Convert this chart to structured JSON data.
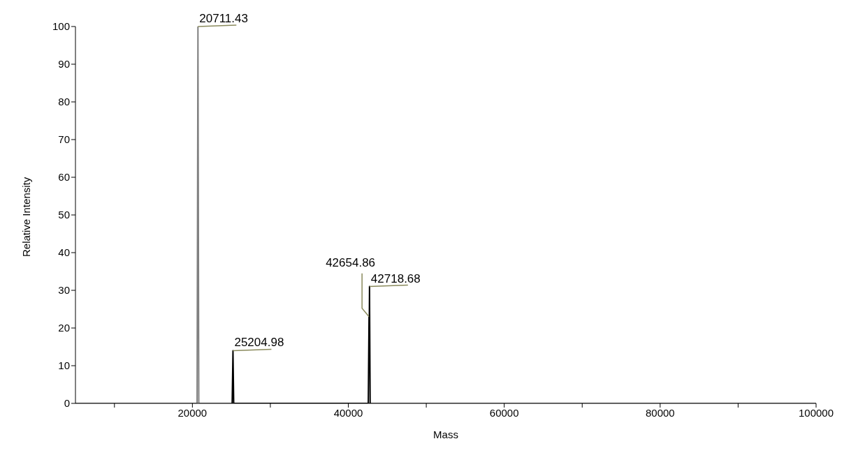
{
  "chart_data": {
    "type": "line",
    "xlabel": "Mass",
    "ylabel": "Relative Intensity",
    "xlim": [
      5000,
      100000
    ],
    "ylim": [
      0,
      100
    ],
    "xticks": [
      {
        "value": 10000,
        "label": null
      },
      20000,
      {
        "value": 30000,
        "label": null
      },
      40000,
      {
        "value": 50000,
        "label": null
      },
      60000,
      {
        "value": 70000,
        "label": null
      },
      80000,
      {
        "value": 90000,
        "label": null
      },
      100000
    ],
    "yticks": [
      0,
      10,
      20,
      30,
      40,
      50,
      60,
      70,
      80,
      90,
      100
    ],
    "marker": "none",
    "line_style": "solid",
    "series": [
      {
        "color": "#808080",
        "x": [
          5000,
          20600,
          20711.43,
          20820,
          100000
        ],
        "values": [
          0,
          0,
          100,
          0,
          0
        ]
      },
      {
        "color": "#000000",
        "x": [
          25100,
          25204.98,
          25300,
          42560,
          42654.86,
          42690,
          42718.68,
          42800
        ],
        "values": [
          0,
          14,
          0,
          0,
          23,
          22,
          31,
          0
        ]
      }
    ],
    "annotations": [
      {
        "text": "20711.43",
        "x": 20711.43,
        "y": 100
      },
      {
        "text": "25204.98",
        "x": 25204.98,
        "y": 14
      },
      {
        "text": "42654.86",
        "x": 42654.86,
        "y": 23
      },
      {
        "text": "42718.68",
        "x": 42718.68,
        "y": 31
      }
    ]
  }
}
